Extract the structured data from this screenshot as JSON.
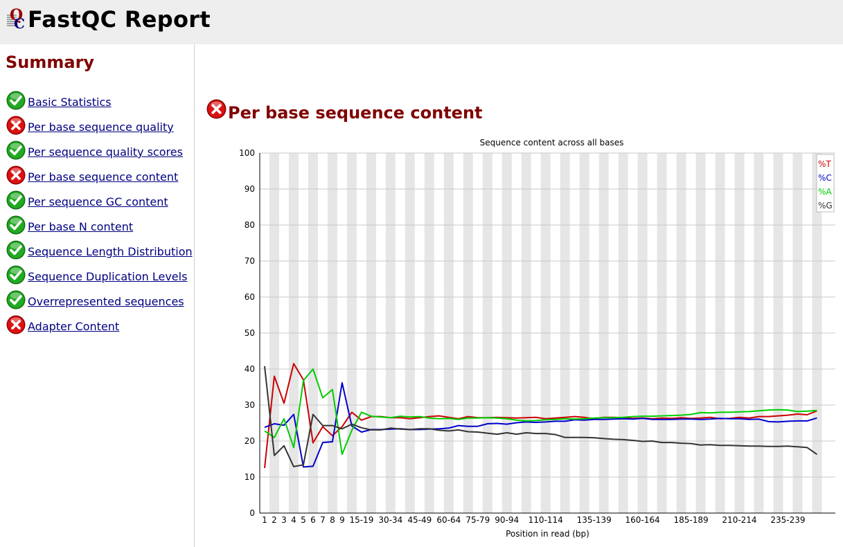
{
  "header": {
    "title": "FastQC Report",
    "logo_letters": "QC"
  },
  "sidebar": {
    "title": "Summary",
    "items": [
      {
        "label": "Basic Statistics",
        "status": "pass"
      },
      {
        "label": "Per base sequence quality",
        "status": "fail"
      },
      {
        "label": "Per sequence quality scores",
        "status": "pass"
      },
      {
        "label": "Per base sequence content",
        "status": "fail"
      },
      {
        "label": "Per sequence GC content",
        "status": "pass"
      },
      {
        "label": "Per base N content",
        "status": "pass"
      },
      {
        "label": "Sequence Length Distribution",
        "status": "pass"
      },
      {
        "label": "Sequence Duplication Levels",
        "status": "pass"
      },
      {
        "label": "Overrepresented sequences",
        "status": "pass"
      },
      {
        "label": "Adapter Content",
        "status": "fail"
      }
    ]
  },
  "main": {
    "section_title": "Per base sequence content",
    "section_status": "fail"
  },
  "colors": {
    "pass": "#22aa22",
    "fail": "#dd1111",
    "title": "#800000",
    "link": "#000080"
  },
  "chart_data": {
    "type": "line",
    "title": "Sequence content across all bases",
    "xlabel": "Position in read (bp)",
    "ylabel": "",
    "ylim": [
      0,
      100
    ],
    "yticks": [
      0,
      10,
      20,
      30,
      40,
      50,
      60,
      70,
      80,
      90,
      100
    ],
    "grid": true,
    "legend_position": "top-right",
    "categories": [
      "1",
      "2",
      "3",
      "4",
      "5",
      "6",
      "7",
      "8",
      "9",
      "10-14",
      "15-19",
      "20-24",
      "25-29",
      "30-34",
      "35-39",
      "40-44",
      "45-49",
      "50-54",
      "55-59",
      "60-64",
      "65-69",
      "70-74",
      "75-79",
      "80-84",
      "85-89",
      "90-94",
      "95-99",
      "100-104",
      "105-109",
      "110-114",
      "115-119",
      "120-124",
      "125-129",
      "130-134",
      "135-139",
      "140-144",
      "145-149",
      "150-154",
      "155-159",
      "160-164",
      "165-169",
      "170-174",
      "175-179",
      "180-184",
      "185-189",
      "190-194",
      "195-199",
      "200-204",
      "205-209",
      "210-214",
      "215-219",
      "220-224",
      "225-229",
      "230-234",
      "235-239",
      "240-244",
      "245-249",
      "250-251"
    ],
    "tick_labels": [
      "1",
      "2",
      "3",
      "4",
      "5",
      "6",
      "7",
      "8",
      "9",
      "15-19",
      "30-34",
      "45-49",
      "60-64",
      "75-79",
      "90-94",
      "110-114",
      "135-139",
      "160-164",
      "185-189",
      "210-214",
      "235-239"
    ],
    "series": [
      {
        "name": "%T",
        "color": "#cc0000",
        "values": [
          12.5,
          38,
          30.5,
          41.5,
          37,
          19.5,
          24,
          21.5,
          24,
          28,
          25.8,
          26.8,
          26.8,
          26.5,
          26.5,
          26.2,
          26.5,
          26.8,
          27,
          26.6,
          26.2,
          26.8,
          26.5,
          26.5,
          26.6,
          26.5,
          26.4,
          26.5,
          26.6,
          26.2,
          26.4,
          26.6,
          26.8,
          26.6,
          26.2,
          26.6,
          26.6,
          26.5,
          26.3,
          26.4,
          26.2,
          26.4,
          26.3,
          26.5,
          26.3,
          26.4,
          26.6,
          26.2,
          26.3,
          26.6,
          26.4,
          26.8,
          26.8,
          27,
          27.2,
          27.5,
          27.3,
          28.4
        ]
      },
      {
        "name": "%C",
        "color": "#0000cc",
        "values": [
          23.8,
          24.8,
          24.4,
          27.4,
          12.8,
          13,
          19.6,
          19.8,
          36.2,
          24.2,
          22.5,
          23.2,
          23.2,
          23.3,
          23.4,
          23.2,
          23.2,
          23.3,
          23.4,
          23.6,
          24.3,
          24.1,
          24.1,
          24.8,
          24.9,
          24.7,
          25.1,
          25.3,
          25.2,
          25.3,
          25.5,
          25.5,
          25.9,
          25.8,
          26,
          26,
          26.1,
          26.2,
          26.1,
          26.3,
          26,
          26,
          26,
          26.1,
          26.1,
          26,
          26.1,
          26.3,
          26.2,
          26.2,
          26,
          26.1,
          25.4,
          25.3,
          25.5,
          25.6,
          25.6,
          26.4
        ]
      },
      {
        "name": "%A",
        "color": "#00cc00",
        "values": [
          22.8,
          21,
          26.2,
          18.2,
          36.8,
          40,
          32,
          34.3,
          16.3,
          23,
          28,
          26.9,
          26.7,
          26.5,
          26.9,
          26.7,
          26.8,
          26.4,
          26.2,
          26.3,
          26,
          26.4,
          26.4,
          26.5,
          26.4,
          26.2,
          25.8,
          25.6,
          25.7,
          25.9,
          26,
          26.2,
          26.1,
          26.2,
          26.4,
          26.5,
          26.5,
          26.6,
          26.8,
          26.9,
          26.9,
          27,
          27.1,
          27.2,
          27.4,
          27.9,
          27.8,
          28,
          28,
          28.1,
          28.2,
          28.4,
          28.6,
          28.7,
          28.6,
          28.2,
          28.3,
          28.5
        ]
      },
      {
        "name": "%G",
        "color": "#333333",
        "values": [
          40.8,
          16,
          18.7,
          12.9,
          13.4,
          27.4,
          24.3,
          24.3,
          23.4,
          24.7,
          23.7,
          23.1,
          23.1,
          23.6,
          23.3,
          23.2,
          23.4,
          23.4,
          23,
          22.8,
          23.1,
          22.6,
          22.5,
          22.2,
          21.9,
          22.3,
          21.9,
          22.3,
          22.1,
          22.1,
          21.8,
          21,
          21,
          21,
          20.9,
          20.7,
          20.5,
          20.4,
          20.2,
          19.9,
          20,
          19.6,
          19.6,
          19.4,
          19.3,
          18.9,
          19,
          18.8,
          18.8,
          18.7,
          18.6,
          18.6,
          18.5,
          18.5,
          18.6,
          18.4,
          18.2,
          16.3
        ]
      }
    ]
  }
}
